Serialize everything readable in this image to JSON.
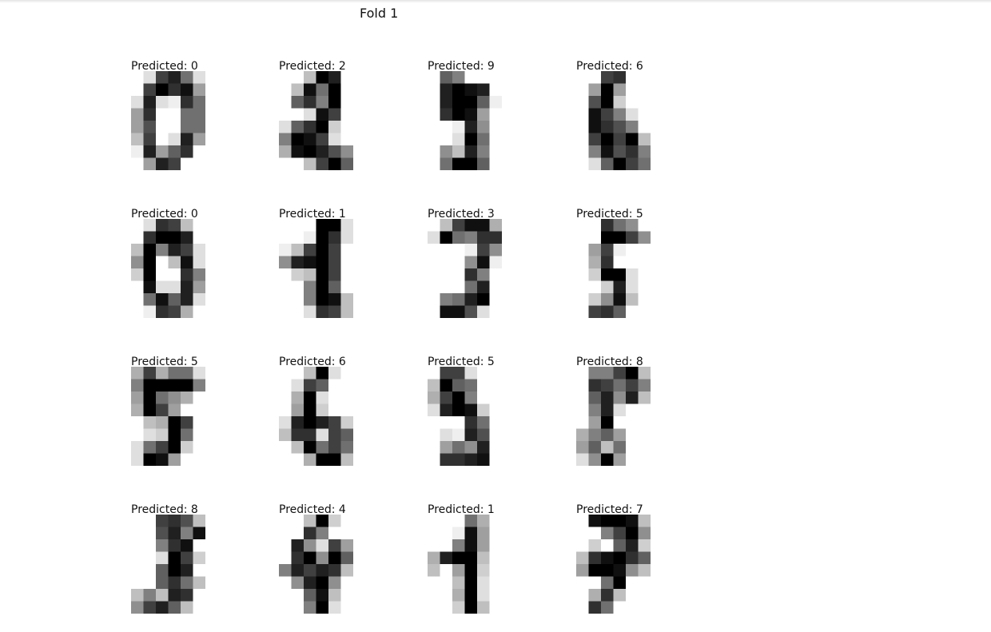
{
  "figure": {
    "title": "Fold 1"
  },
  "cells": [
    {
      "label": "Predicted: 0",
      "pixels": [
        [
          0,
          2,
          12,
          14,
          9,
          2
        ],
        [
          0,
          12,
          16,
          13,
          15,
          6
        ],
        [
          2,
          14,
          2,
          1,
          13,
          9
        ],
        [
          6,
          13,
          0,
          0,
          9,
          9
        ],
        [
          6,
          11,
          0,
          0,
          9,
          9
        ],
        [
          4,
          12,
          0,
          2,
          14,
          6
        ],
        [
          1,
          14,
          6,
          10,
          13,
          0
        ],
        [
          0,
          6,
          14,
          12,
          0,
          0
        ]
      ]
    },
    {
      "label": "Predicted: 2",
      "pixels": [
        [
          0,
          0,
          4,
          16,
          14,
          0
        ],
        [
          0,
          4,
          15,
          9,
          16,
          0
        ],
        [
          0,
          10,
          13,
          8,
          16,
          0
        ],
        [
          0,
          0,
          2,
          15,
          12,
          0
        ],
        [
          2,
          10,
          13,
          16,
          3,
          0
        ],
        [
          8,
          16,
          15,
          12,
          2,
          0
        ],
        [
          5,
          15,
          16,
          14,
          11,
          7
        ],
        [
          0,
          0,
          4,
          12,
          16,
          10
        ]
      ]
    },
    {
      "label": "Predicted: 9",
      "pixels": [
        [
          0,
          10,
          8,
          0,
          0,
          0
        ],
        [
          0,
          14,
          16,
          15,
          14,
          0
        ],
        [
          0,
          14,
          16,
          16,
          10,
          1
        ],
        [
          0,
          13,
          16,
          15,
          6,
          0
        ],
        [
          0,
          0,
          1,
          14,
          7,
          0
        ],
        [
          0,
          0,
          2,
          16,
          9,
          0
        ],
        [
          0,
          7,
          4,
          14,
          8,
          0
        ],
        [
          0,
          9,
          16,
          16,
          10,
          0
        ]
      ]
    },
    {
      "label": "Predicted: 6",
      "pixels": [
        [
          0,
          0,
          12,
          13,
          0,
          0
        ],
        [
          0,
          6,
          16,
          6,
          0,
          0
        ],
        [
          0,
          11,
          16,
          3,
          0,
          0
        ],
        [
          0,
          15,
          12,
          8,
          2,
          0
        ],
        [
          0,
          15,
          13,
          11,
          8,
          0
        ],
        [
          0,
          12,
          16,
          12,
          16,
          4
        ],
        [
          0,
          8,
          15,
          11,
          13,
          8
        ],
        [
          0,
          2,
          10,
          16,
          12,
          9
        ]
      ]
    },
    {
      "label": "Predicted: 0",
      "pixels": [
        [
          0,
          2,
          13,
          12,
          4,
          0
        ],
        [
          0,
          13,
          16,
          16,
          14,
          0
        ],
        [
          4,
          16,
          8,
          14,
          12,
          2
        ],
        [
          7,
          16,
          0,
          4,
          15,
          2
        ],
        [
          3,
          16,
          0,
          0,
          13,
          8
        ],
        [
          0,
          15,
          2,
          2,
          14,
          6
        ],
        [
          0,
          9,
          15,
          10,
          14,
          2
        ],
        [
          0,
          1,
          13,
          12,
          5,
          0
        ]
      ]
    },
    {
      "label": "Predicted: 1",
      "pixels": [
        [
          0,
          0,
          0,
          16,
          16,
          2
        ],
        [
          0,
          0,
          1,
          16,
          13,
          2
        ],
        [
          1,
          4,
          12,
          16,
          12,
          0
        ],
        [
          7,
          14,
          15,
          16,
          12,
          0
        ],
        [
          0,
          3,
          4,
          16,
          12,
          0
        ],
        [
          0,
          0,
          8,
          16,
          10,
          0
        ],
        [
          0,
          0,
          8,
          16,
          15,
          4
        ],
        [
          0,
          0,
          2,
          13,
          12,
          4
        ]
      ]
    },
    {
      "label": "Predicted: 3",
      "pixels": [
        [
          0,
          4,
          12,
          15,
          15,
          5
        ],
        [
          2,
          16,
          9,
          8,
          13,
          13
        ],
        [
          0,
          0,
          0,
          1,
          12,
          7
        ],
        [
          0,
          0,
          0,
          7,
          15,
          1
        ],
        [
          0,
          0,
          0,
          13,
          8,
          0
        ],
        [
          0,
          0,
          0,
          9,
          14,
          0
        ],
        [
          0,
          8,
          9,
          14,
          16,
          0
        ],
        [
          0,
          15,
          15,
          11,
          2,
          0
        ]
      ]
    },
    {
      "label": "Predicted: 5",
      "pixels": [
        [
          0,
          0,
          13,
          9,
          7,
          0
        ],
        [
          0,
          0,
          16,
          16,
          12,
          7
        ],
        [
          0,
          6,
          12,
          1,
          0,
          0
        ],
        [
          0,
          5,
          13,
          0,
          0,
          0
        ],
        [
          0,
          3,
          16,
          16,
          2,
          0
        ],
        [
          0,
          0,
          3,
          14,
          2,
          0
        ],
        [
          0,
          3,
          7,
          15,
          4,
          0
        ],
        [
          0,
          12,
          13,
          10,
          0,
          0
        ]
      ]
    },
    {
      "label": "Predicted: 5",
      "pixels": [
        [
          5,
          12,
          5,
          9,
          9,
          2
        ],
        [
          8,
          16,
          16,
          16,
          16,
          8
        ],
        [
          6,
          16,
          9,
          7,
          5,
          0
        ],
        [
          5,
          16,
          12,
          6,
          0,
          0
        ],
        [
          0,
          4,
          5,
          16,
          12,
          0
        ],
        [
          0,
          2,
          3,
          16,
          9,
          0
        ],
        [
          2,
          9,
          12,
          16,
          3,
          0
        ],
        [
          2,
          16,
          15,
          6,
          0,
          0
        ]
      ]
    },
    {
      "label": "Predicted: 6",
      "pixels": [
        [
          0,
          0,
          4,
          16,
          2,
          0
        ],
        [
          0,
          2,
          12,
          10,
          0,
          0
        ],
        [
          0,
          5,
          16,
          2,
          0,
          0
        ],
        [
          0,
          6,
          16,
          3,
          0,
          0
        ],
        [
          2,
          14,
          16,
          14,
          12,
          3
        ],
        [
          4,
          13,
          13,
          2,
          12,
          10
        ],
        [
          0,
          4,
          16,
          9,
          12,
          9
        ],
        [
          0,
          0,
          5,
          16,
          16,
          4
        ]
      ]
    },
    {
      "label": "Predicted: 5",
      "pixels": [
        [
          0,
          12,
          12,
          2,
          0,
          0
        ],
        [
          4,
          16,
          10,
          9,
          0,
          0
        ],
        [
          5,
          12,
          16,
          8,
          0,
          0
        ],
        [
          2,
          14,
          16,
          15,
          3,
          0
        ],
        [
          0,
          0,
          0,
          13,
          9,
          0
        ],
        [
          0,
          2,
          1,
          14,
          11,
          0
        ],
        [
          0,
          6,
          9,
          7,
          14,
          0
        ],
        [
          0,
          13,
          13,
          14,
          15,
          0
        ]
      ]
    },
    {
      "label": "Predicted: 8",
      "pixels": [
        [
          0,
          8,
          8,
          12,
          16,
          4
        ],
        [
          0,
          13,
          12,
          9,
          12,
          8
        ],
        [
          0,
          10,
          14,
          7,
          14,
          4
        ],
        [
          0,
          8,
          14,
          2,
          0,
          0
        ],
        [
          0,
          6,
          16,
          0,
          0,
          0
        ],
        [
          5,
          8,
          10,
          6,
          0,
          0
        ],
        [
          6,
          10,
          4,
          9,
          0,
          0
        ],
        [
          2,
          7,
          16,
          6,
          0,
          0
        ]
      ]
    },
    {
      "label": "Predicted: 8",
      "pixels": [
        [
          0,
          0,
          12,
          13,
          11,
          4
        ],
        [
          0,
          0,
          11,
          14,
          8,
          15
        ],
        [
          0,
          0,
          8,
          13,
          15,
          0
        ],
        [
          0,
          0,
          2,
          16,
          12,
          3
        ],
        [
          0,
          0,
          10,
          16,
          14,
          0
        ],
        [
          0,
          0,
          10,
          13,
          9,
          4
        ],
        [
          4,
          8,
          4,
          14,
          13,
          0
        ],
        [
          7,
          12,
          14,
          10,
          4,
          0
        ]
      ]
    },
    {
      "label": "Predicted: 4",
      "pixels": [
        [
          0,
          0,
          4,
          16,
          3,
          0
        ],
        [
          0,
          0,
          13,
          8,
          0,
          0
        ],
        [
          0,
          14,
          7,
          2,
          12,
          6
        ],
        [
          0,
          13,
          16,
          7,
          16,
          10
        ],
        [
          8,
          14,
          12,
          14,
          13,
          4
        ],
        [
          0,
          7,
          14,
          16,
          7,
          0
        ],
        [
          0,
          0,
          10,
          15,
          4,
          0
        ],
        [
          0,
          0,
          8,
          16,
          2,
          0
        ]
      ]
    },
    {
      "label": "Predicted: 1",
      "pixels": [
        [
          0,
          0,
          0,
          9,
          5,
          0
        ],
        [
          0,
          0,
          1,
          15,
          6,
          0
        ],
        [
          0,
          0,
          8,
          15,
          6,
          0
        ],
        [
          5,
          14,
          16,
          16,
          4,
          0
        ],
        [
          4,
          0,
          6,
          16,
          3,
          0
        ],
        [
          0,
          0,
          4,
          16,
          2,
          0
        ],
        [
          0,
          0,
          5,
          16,
          2,
          0
        ],
        [
          0,
          0,
          3,
          16,
          4,
          0
        ]
      ]
    },
    {
      "label": "Predicted: 7",
      "pixels": [
        [
          0,
          15,
          16,
          16,
          15,
          4
        ],
        [
          0,
          0,
          8,
          12,
          16,
          7
        ],
        [
          0,
          3,
          0,
          10,
          14,
          3
        ],
        [
          4,
          13,
          15,
          16,
          13,
          10
        ],
        [
          6,
          16,
          16,
          15,
          7,
          4
        ],
        [
          0,
          0,
          9,
          16,
          0,
          0
        ],
        [
          0,
          5,
          13,
          4,
          0,
          0
        ],
        [
          0,
          13,
          9,
          0,
          0,
          0
        ]
      ]
    }
  ]
}
